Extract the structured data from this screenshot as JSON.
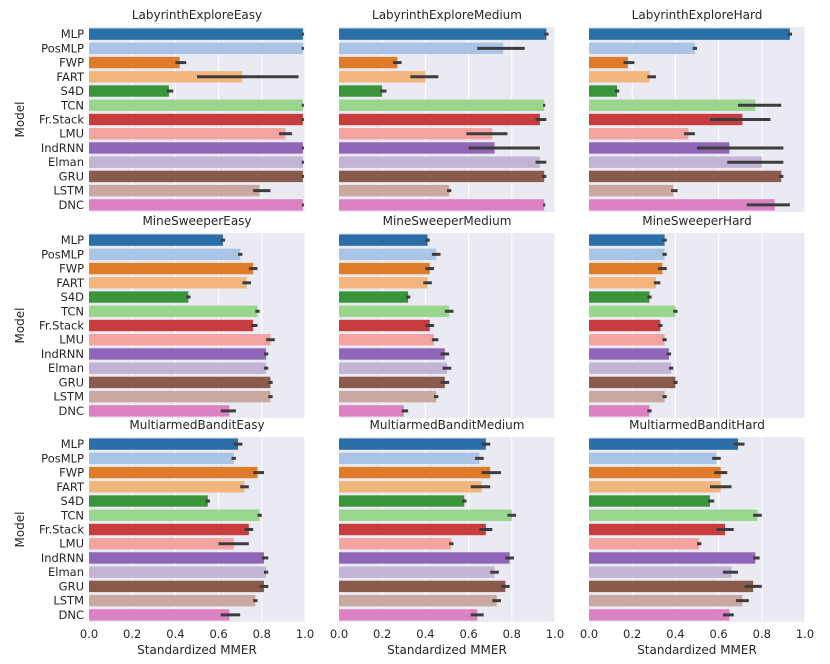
{
  "figure": {
    "ylabel": "Model",
    "xlabel": "Standardized MMER",
    "x_ticks": [
      "0.0",
      "0.2",
      "0.4",
      "0.6",
      "0.8",
      "1.0"
    ]
  },
  "chart_data": {
    "type": "bar",
    "orientation": "horizontal",
    "xlim": [
      0,
      1.0
    ],
    "grid": true,
    "categories": [
      "MLP",
      "PosMLP",
      "FWP",
      "FART",
      "S4D",
      "TCN",
      "Fr.Stack",
      "LMU",
      "IndRNN",
      "Elman",
      "GRU",
      "LSTM",
      "DNC"
    ],
    "colors": [
      "#2b6ea8",
      "#a9c4e4",
      "#e07b28",
      "#f2b57c",
      "#3a953a",
      "#99d58c",
      "#c73c3c",
      "#f4a3a1",
      "#9066b8",
      "#c3b3d5",
      "#8a5a4c",
      "#c8a89f",
      "#dc82c3"
    ],
    "panels": [
      {
        "title": "LabyrinthExploreEasy",
        "values": [
          0.99,
          0.99,
          0.42,
          0.71,
          0.37,
          0.99,
          0.99,
          0.91,
          0.99,
          0.99,
          0.99,
          0.79,
          0.99
        ],
        "err": [
          [
            0.985,
            0.995
          ],
          [
            0.985,
            0.995
          ],
          [
            0.4,
            0.45
          ],
          [
            0.5,
            0.97
          ],
          [
            0.36,
            0.39
          ],
          [
            0.985,
            0.995
          ],
          [
            0.985,
            0.995
          ],
          [
            0.88,
            0.94
          ],
          [
            0.985,
            0.995
          ],
          [
            0.985,
            0.995
          ],
          [
            0.985,
            0.995
          ],
          [
            0.76,
            0.84
          ],
          [
            0.985,
            0.995
          ]
        ]
      },
      {
        "title": "LabyrinthExploreMedium",
        "values": [
          0.96,
          0.76,
          0.27,
          0.4,
          0.2,
          0.95,
          0.93,
          0.71,
          0.72,
          0.93,
          0.95,
          0.51,
          0.95
        ],
        "err": [
          [
            0.95,
            0.97
          ],
          [
            0.64,
            0.86
          ],
          [
            0.25,
            0.29
          ],
          [
            0.33,
            0.46
          ],
          [
            0.19,
            0.22
          ],
          [
            0.945,
            0.955
          ],
          [
            0.91,
            0.96
          ],
          [
            0.59,
            0.78
          ],
          [
            0.6,
            0.93
          ],
          [
            0.91,
            0.96
          ],
          [
            0.94,
            0.96
          ],
          [
            0.5,
            0.52
          ],
          [
            0.945,
            0.955
          ]
        ]
      },
      {
        "title": "LabyrinthExploreHard",
        "values": [
          0.93,
          0.49,
          0.18,
          0.28,
          0.13,
          0.77,
          0.71,
          0.46,
          0.65,
          0.8,
          0.89,
          0.39,
          0.86
        ],
        "err": [
          [
            0.92,
            0.94
          ],
          [
            0.48,
            0.5
          ],
          [
            0.16,
            0.21
          ],
          [
            0.27,
            0.31
          ],
          [
            0.12,
            0.14
          ],
          [
            0.69,
            0.89
          ],
          [
            0.56,
            0.84
          ],
          [
            0.44,
            0.49
          ],
          [
            0.5,
            0.9
          ],
          [
            0.64,
            0.9
          ],
          [
            0.88,
            0.9
          ],
          [
            0.38,
            0.41
          ],
          [
            0.73,
            0.93
          ]
        ]
      },
      {
        "title": "MineSweeperEasy",
        "values": [
          0.62,
          0.7,
          0.76,
          0.73,
          0.46,
          0.78,
          0.76,
          0.84,
          0.82,
          0.82,
          0.84,
          0.84,
          0.65
        ],
        "err": [
          [
            0.61,
            0.63
          ],
          [
            0.69,
            0.71
          ],
          [
            0.74,
            0.78
          ],
          [
            0.71,
            0.75
          ],
          [
            0.45,
            0.47
          ],
          [
            0.77,
            0.79
          ],
          [
            0.75,
            0.78
          ],
          [
            0.82,
            0.86
          ],
          [
            0.81,
            0.83
          ],
          [
            0.81,
            0.83
          ],
          [
            0.83,
            0.85
          ],
          [
            0.83,
            0.85
          ],
          [
            0.61,
            0.68
          ]
        ]
      },
      {
        "title": "MineSweeperMedium",
        "values": [
          0.41,
          0.45,
          0.42,
          0.41,
          0.32,
          0.51,
          0.42,
          0.44,
          0.49,
          0.5,
          0.49,
          0.45,
          0.3
        ],
        "err": [
          [
            0.4,
            0.42
          ],
          [
            0.43,
            0.47
          ],
          [
            0.4,
            0.44
          ],
          [
            0.39,
            0.43
          ],
          [
            0.31,
            0.33
          ],
          [
            0.49,
            0.53
          ],
          [
            0.4,
            0.44
          ],
          [
            0.43,
            0.46
          ],
          [
            0.47,
            0.51
          ],
          [
            0.48,
            0.52
          ],
          [
            0.47,
            0.51
          ],
          [
            0.44,
            0.46
          ],
          [
            0.29,
            0.32
          ]
        ]
      },
      {
        "title": "MineSweeperHard",
        "values": [
          0.35,
          0.35,
          0.34,
          0.31,
          0.28,
          0.4,
          0.33,
          0.35,
          0.37,
          0.38,
          0.4,
          0.35,
          0.28
        ],
        "err": [
          [
            0.34,
            0.36
          ],
          [
            0.34,
            0.36
          ],
          [
            0.32,
            0.36
          ],
          [
            0.3,
            0.33
          ],
          [
            0.27,
            0.29
          ],
          [
            0.39,
            0.41
          ],
          [
            0.32,
            0.34
          ],
          [
            0.34,
            0.36
          ],
          [
            0.36,
            0.38
          ],
          [
            0.37,
            0.39
          ],
          [
            0.39,
            0.41
          ],
          [
            0.34,
            0.36
          ],
          [
            0.27,
            0.29
          ]
        ]
      },
      {
        "title": "MultiarmedBanditEasy",
        "values": [
          0.69,
          0.67,
          0.78,
          0.72,
          0.55,
          0.79,
          0.74,
          0.67,
          0.81,
          0.82,
          0.81,
          0.77,
          0.65
        ],
        "err": [
          [
            0.67,
            0.71
          ],
          [
            0.66,
            0.68
          ],
          [
            0.76,
            0.81
          ],
          [
            0.7,
            0.74
          ],
          [
            0.54,
            0.56
          ],
          [
            0.78,
            0.8
          ],
          [
            0.72,
            0.76
          ],
          [
            0.6,
            0.74
          ],
          [
            0.8,
            0.83
          ],
          [
            0.81,
            0.83
          ],
          [
            0.79,
            0.83
          ],
          [
            0.76,
            0.78
          ],
          [
            0.61,
            0.7
          ]
        ]
      },
      {
        "title": "MultiarmedBanditMedium",
        "values": [
          0.68,
          0.65,
          0.7,
          0.66,
          0.58,
          0.8,
          0.68,
          0.52,
          0.79,
          0.72,
          0.77,
          0.73,
          0.64
        ],
        "err": [
          [
            0.66,
            0.7
          ],
          [
            0.63,
            0.67
          ],
          [
            0.66,
            0.75
          ],
          [
            0.61,
            0.7
          ],
          [
            0.57,
            0.59
          ],
          [
            0.78,
            0.82
          ],
          [
            0.65,
            0.71
          ],
          [
            0.51,
            0.53
          ],
          [
            0.77,
            0.81
          ],
          [
            0.7,
            0.74
          ],
          [
            0.75,
            0.79
          ],
          [
            0.71,
            0.75
          ],
          [
            0.61,
            0.67
          ]
        ]
      },
      {
        "title": "MultiarmedBanditHard",
        "values": [
          0.69,
          0.59,
          0.61,
          0.61,
          0.56,
          0.78,
          0.63,
          0.51,
          0.77,
          0.66,
          0.76,
          0.71,
          0.65
        ],
        "err": [
          [
            0.67,
            0.72
          ],
          [
            0.57,
            0.61
          ],
          [
            0.58,
            0.64
          ],
          [
            0.56,
            0.66
          ],
          [
            0.55,
            0.58
          ],
          [
            0.76,
            0.8
          ],
          [
            0.59,
            0.67
          ],
          [
            0.5,
            0.52
          ],
          [
            0.76,
            0.79
          ],
          [
            0.62,
            0.69
          ],
          [
            0.72,
            0.8
          ],
          [
            0.68,
            0.74
          ],
          [
            0.62,
            0.67
          ]
        ]
      }
    ]
  }
}
